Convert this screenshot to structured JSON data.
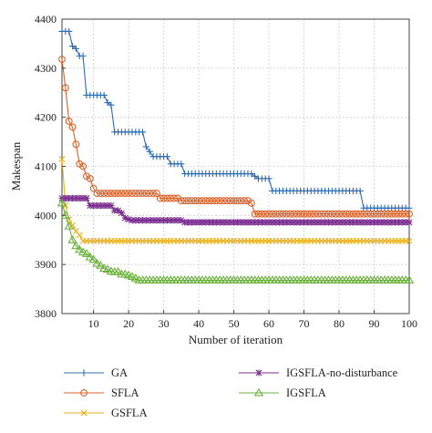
{
  "chart_data": {
    "type": "line",
    "title": "",
    "xlabel": "Number of iteration",
    "ylabel": "Makespan",
    "xlim": [
      1,
      100
    ],
    "ylim": [
      3800,
      4400
    ],
    "xticks": [
      10,
      20,
      30,
      40,
      50,
      60,
      70,
      80,
      90,
      100
    ],
    "yticks": [
      3800,
      3900,
      4000,
      4100,
      4200,
      4300,
      4400
    ],
    "grid": true,
    "legend_position": "bottom",
    "series": [
      {
        "name": "GA",
        "color": "#2e6db4",
        "marker": "plus",
        "points": [
          [
            1,
            4375
          ],
          [
            2,
            4375
          ],
          [
            3,
            4375
          ],
          [
            4,
            4345
          ],
          [
            5,
            4340
          ],
          [
            6,
            4325
          ],
          [
            7,
            4325
          ],
          [
            8,
            4245
          ],
          [
            13,
            4245
          ],
          [
            14,
            4230
          ],
          [
            15,
            4225
          ],
          [
            16,
            4170
          ],
          [
            23,
            4170
          ],
          [
            25,
            4140
          ],
          [
            26,
            4130
          ],
          [
            27,
            4120
          ],
          [
            31,
            4120
          ],
          [
            32,
            4105
          ],
          [
            35,
            4105
          ],
          [
            36,
            4085
          ],
          [
            55,
            4085
          ],
          [
            56,
            4080
          ],
          [
            57,
            4075
          ],
          [
            60,
            4075
          ],
          [
            61,
            4050
          ],
          [
            86,
            4050
          ],
          [
            87,
            4015
          ],
          [
            100,
            4015
          ]
        ]
      },
      {
        "name": "SFLA",
        "color": "#d9622b",
        "marker": "circle",
        "points": [
          [
            1,
            4318
          ],
          [
            2,
            4260
          ],
          [
            3,
            4192
          ],
          [
            4,
            4180
          ],
          [
            5,
            4145
          ],
          [
            6,
            4105
          ],
          [
            7,
            4100
          ],
          [
            8,
            4080
          ],
          [
            9,
            4075
          ],
          [
            10,
            4055
          ],
          [
            11,
            4045
          ],
          [
            28,
            4045
          ],
          [
            29,
            4035
          ],
          [
            34,
            4035
          ],
          [
            35,
            4030
          ],
          [
            54,
            4030
          ],
          [
            55,
            4025
          ],
          [
            56,
            4003
          ],
          [
            100,
            4003
          ]
        ]
      },
      {
        "name": "GSFLA",
        "color": "#e9b11c",
        "marker": "x",
        "points": [
          [
            1,
            4115
          ],
          [
            2,
            4020
          ],
          [
            3,
            3992
          ],
          [
            4,
            3980
          ],
          [
            5,
            3968
          ],
          [
            6,
            3960
          ],
          [
            7,
            3948
          ],
          [
            100,
            3948
          ]
        ]
      },
      {
        "name": "IGSFLA-no-disturbance",
        "color": "#7b2d90",
        "marker": "star",
        "points": [
          [
            1,
            4035
          ],
          [
            8,
            4035
          ],
          [
            9,
            4020
          ],
          [
            15,
            4020
          ],
          [
            16,
            4010
          ],
          [
            18,
            4005
          ],
          [
            19,
            3995
          ],
          [
            20,
            3992
          ],
          [
            21,
            3990
          ],
          [
            35,
            3990
          ],
          [
            36,
            3986
          ],
          [
            100,
            3986
          ]
        ]
      },
      {
        "name": "IGSFLA",
        "color": "#6bb13c",
        "marker": "triangle",
        "points": [
          [
            1,
            4025
          ],
          [
            2,
            4000
          ],
          [
            3,
            3978
          ],
          [
            4,
            3950
          ],
          [
            5,
            3938
          ],
          [
            6,
            3930
          ],
          [
            7,
            3925
          ],
          [
            8,
            3922
          ],
          [
            9,
            3915
          ],
          [
            10,
            3910
          ],
          [
            11,
            3902
          ],
          [
            12,
            3898
          ],
          [
            13,
            3892
          ],
          [
            14,
            3890
          ],
          [
            15,
            3886
          ],
          [
            16,
            3885
          ],
          [
            18,
            3880
          ],
          [
            20,
            3878
          ],
          [
            21,
            3875
          ],
          [
            22,
            3872
          ],
          [
            23,
            3868
          ],
          [
            100,
            3868
          ]
        ]
      }
    ]
  }
}
